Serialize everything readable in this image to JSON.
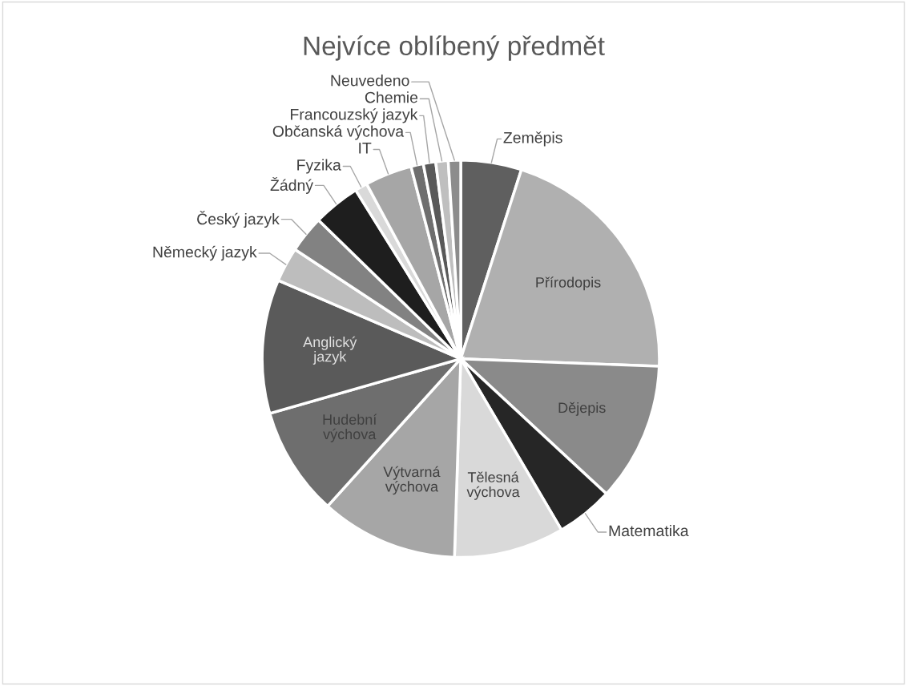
{
  "chart_data": {
    "type": "pie",
    "title": "Nejvíce oblíbený předmět",
    "categories": [
      "Zeměpis",
      "Přírodopis",
      "Dějepis",
      "Matematika",
      "Tělesná výchova",
      "Výtvarná výchova",
      "Hudební výchova",
      "Anglický jazyk",
      "Německý jazyk",
      "Český jazyk",
      "Žádný",
      "Fyzika",
      "IT",
      "Občanská výchova",
      "Francouzský jazyk",
      "Chemie",
      "Neuvedeno"
    ],
    "values": [
      4.9,
      20.5,
      11.2,
      4.6,
      8.9,
      11.1,
      8.8,
      10.8,
      2.8,
      3.0,
      3.8,
      1.0,
      3.8,
      1.0,
      1.0,
      1.0,
      1.0
    ],
    "colors": [
      "#5f5f5f",
      "#b0b0b0",
      "#8a8a8a",
      "#262626",
      "#d9d9d9",
      "#a6a6a6",
      "#6e6e6e",
      "#5a5a5a",
      "#bdbdbd",
      "#828282",
      "#1e1e1e",
      "#d9d9d9",
      "#a6a6a6",
      "#6e6e6e",
      "#595959",
      "#bfbfbf",
      "#8c8c8c"
    ]
  }
}
